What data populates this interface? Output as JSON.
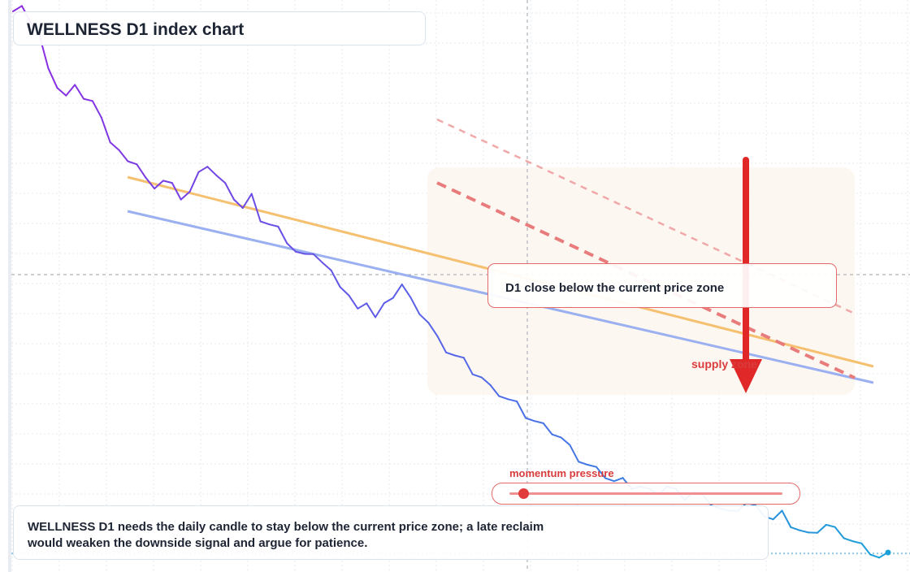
{
  "header": {
    "title": "WELLNESS D1 index chart"
  },
  "callout": {
    "text": "D1 close below the current price zone"
  },
  "zone": {
    "label": "supply zone"
  },
  "momentum": {
    "label": "momentum pressure",
    "level": 0.05
  },
  "footer": {
    "text": "WELLNESS D1 needs the daily candle to stay below the current price zone; a late reclaim would weaken the downside signal and argue for patience."
  },
  "colors": {
    "price_start": "#8b2be2",
    "price_mid": "#5566e8",
    "price_end": "#1aa0d8",
    "upper_trendline": "#f5c06f",
    "lower_trendline": "#9ab0f0",
    "signal_red": "#e03030",
    "faint_red": "#f0a8a8"
  },
  "chart_data": {
    "type": "line",
    "series": [
      {
        "values": [
          1,
          1.01,
          0.98,
          0.95,
          0.9,
          0.86,
          0.84,
          0.87,
          0.84,
          0.83,
          0.81,
          0.76,
          0.74,
          0.73,
          0.72,
          0.69,
          0.68,
          0.69,
          0.68,
          0.66,
          0.67,
          0.7,
          0.72,
          0.7,
          0.68,
          0.66,
          0.64,
          0.66,
          0.62,
          0.61,
          0.6,
          0.58,
          0.56,
          0.55,
          0.56,
          0.54,
          0.52,
          0.5,
          0.48,
          0.45,
          0.47,
          0.44,
          0.46,
          0.48,
          0.5,
          0.47,
          0.45,
          0.43,
          0.4,
          0.38,
          0.37,
          0.36,
          0.34,
          0.33,
          0.31,
          0.3,
          0.29,
          0.28,
          0.26,
          0.25,
          0.24,
          0.23,
          0.22,
          0.2,
          0.18,
          0.17,
          0.16,
          0.15,
          0.14,
          0.14,
          0.13,
          0.13,
          0.12,
          0.12,
          0.13,
          0.12,
          0.11,
          0.12,
          0.11,
          0.1,
          0.09,
          0.08,
          0.09,
          0.1,
          0.09,
          0.08,
          0.07,
          0.08,
          0.06,
          0.05,
          0.04,
          0.05,
          0.06,
          0.05,
          0.04,
          0.03,
          0.02,
          0.01,
          0.0,
          0.01
        ]
      }
    ],
    "annotations": [
      "D1 close below the current price zone",
      "supply zone",
      "momentum pressure"
    ]
  }
}
